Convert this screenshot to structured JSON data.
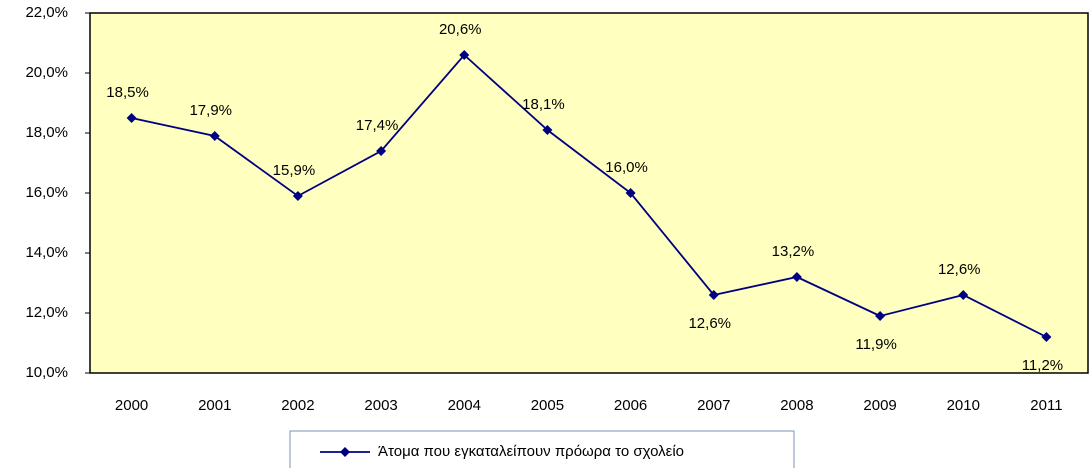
{
  "chart_data": {
    "type": "line",
    "categories": [
      "2000",
      "2001",
      "2002",
      "2003",
      "2004",
      "2005",
      "2006",
      "2007",
      "2008",
      "2009",
      "2010",
      "2011"
    ],
    "series": [
      {
        "name": "Άτομα που εγκαταλείπουν πρόωρα το σχολείο",
        "color": "#000080",
        "values": [
          18.5,
          17.9,
          15.9,
          17.4,
          20.6,
          18.1,
          16.0,
          12.6,
          13.2,
          11.9,
          12.6,
          11.2
        ],
        "value_labels": [
          "18,5%",
          "17,9%",
          "15,9%",
          "17,4%",
          "20,6%",
          "18,1%",
          "16,0%",
          "12,6%",
          "13,2%",
          "11,9%",
          "12,6%",
          "11,2%"
        ]
      }
    ],
    "ylim": [
      10,
      22
    ],
    "yticks": [
      {
        "value": 10,
        "label": "10,0%"
      },
      {
        "value": 12,
        "label": "12,0%"
      },
      {
        "value": 14,
        "label": "14,0%"
      },
      {
        "value": 16,
        "label": "16,0%"
      },
      {
        "value": 18,
        "label": "18,0%"
      },
      {
        "value": 20,
        "label": "20,0%"
      },
      {
        "value": 22,
        "label": "22,0%"
      }
    ],
    "plot_background": "#ffffc0",
    "legend": "bottom"
  }
}
